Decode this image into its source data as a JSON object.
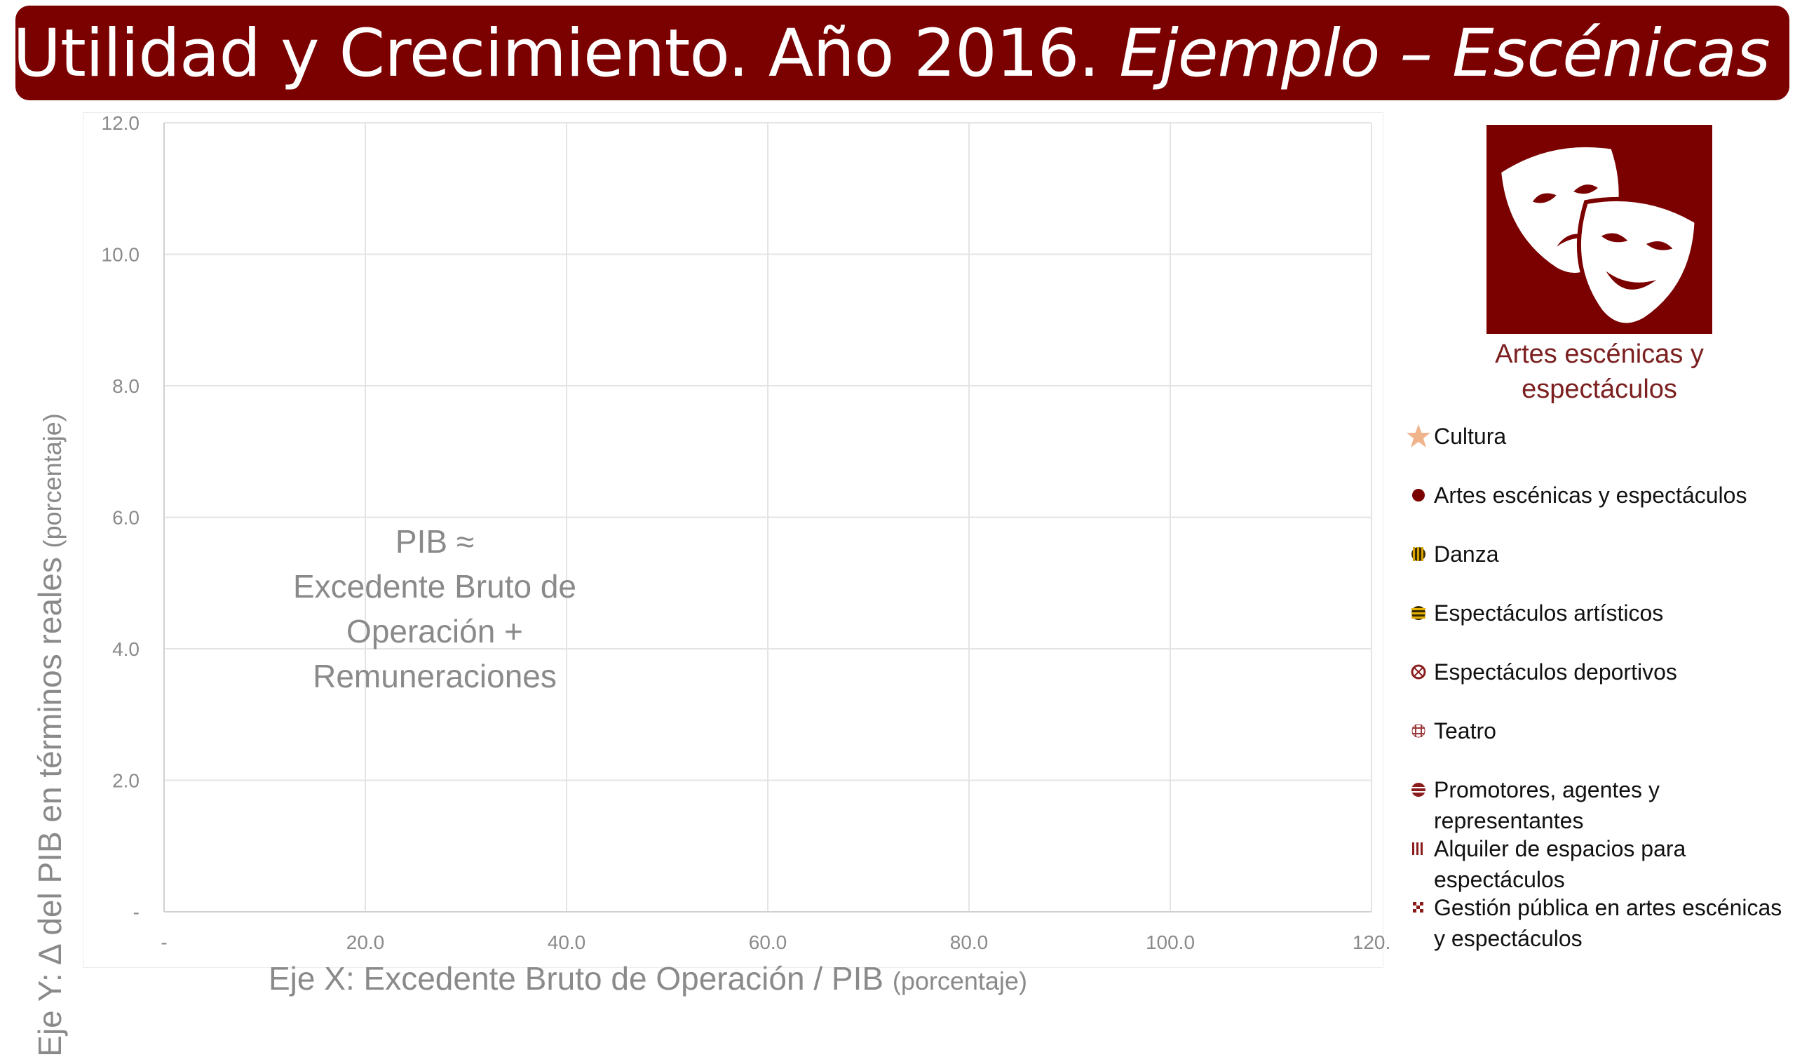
{
  "header": {
    "title_main": "Utilidad y Crecimiento. Año 2016.",
    "title_italic": "Ejemplo – Escénicas"
  },
  "annotation": [
    "PIB ≈",
    "Excedente Bruto de",
    "Operación +",
    "Remuneraciones"
  ],
  "sector": {
    "icon": "theater-masks-icon",
    "title_line1": "Artes escénicas y",
    "title_line2": "espectáculos"
  },
  "axes": {
    "y_title": "Eje Y: ∆ del PIB en términos reales",
    "y_unit": "(porcentaje)",
    "x_title": "Eje X: Excedente Bruto de Operación / PIB",
    "x_unit": "(porcentaje)"
  },
  "colors": {
    "brand": "#7b0000",
    "cultura": "#f0b48c",
    "artes": "#7b0000",
    "danza": "#d9a300",
    "espectaculos_artisticos": "#e6b000",
    "deportivos": "#8b1c1c",
    "teatro": "#9b3a3a",
    "promotores": "#8b1c1c",
    "alquiler": "#8b1c1c",
    "gestion": "#8b1c1c"
  },
  "legend": [
    {
      "label": "Cultura",
      "marker": "star"
    },
    {
      "label": "Artes escénicas y espectáculos",
      "marker": "dot"
    },
    {
      "label": "Danza",
      "marker": "vstripe"
    },
    {
      "label": "Espectáculos artísticos",
      "marker": "hstripe"
    },
    {
      "label": "Espectáculos deportivos",
      "marker": "ring"
    },
    {
      "label": "Teatro",
      "marker": "grid"
    },
    {
      "label": "Promotores, agentes y representantes",
      "marker": "hstripe2"
    },
    {
      "label": "Alquiler de espacios para espectáculos",
      "marker": "vstripe2"
    },
    {
      "label": "Gestión pública en artes escénicas y espectáculos",
      "marker": "check"
    }
  ],
  "chart_data": {
    "type": "scatter",
    "title": "Utilidad y Crecimiento. Año 2016. Ejemplo – Escénicas",
    "xlabel": "Eje X: Excedente Bruto de Operación / PIB (porcentaje)",
    "ylabel": "Eje Y: ∆ del PIB en términos reales (porcentaje)",
    "xlim": [
      0,
      120
    ],
    "ylim": [
      0,
      12
    ],
    "x_ticks": [
      0,
      20,
      40,
      60,
      80,
      100,
      120
    ],
    "x_tick_labels": [
      "-",
      "20.0",
      "40.0",
      "60.0",
      "80.0",
      "100.0",
      "120."
    ],
    "y_ticks": [
      0,
      2,
      4,
      6,
      8,
      10,
      12
    ],
    "y_tick_labels": [
      "-",
      "2.0",
      "4.0",
      "6.0",
      "8.0",
      "10.0",
      "12.0"
    ],
    "grid": true,
    "legend_position": "right",
    "series": [
      {
        "name": "Cultura",
        "points": []
      },
      {
        "name": "Artes escénicas y espectáculos",
        "points": []
      },
      {
        "name": "Danza",
        "points": []
      },
      {
        "name": "Espectáculos artísticos",
        "points": []
      },
      {
        "name": "Espectáculos deportivos",
        "points": []
      },
      {
        "name": "Teatro",
        "points": []
      },
      {
        "name": "Promotores, agentes y representantes",
        "points": []
      },
      {
        "name": "Alquiler de espacios para espectáculos",
        "points": []
      },
      {
        "name": "Gestión pública en artes escénicas y espectáculos",
        "points": []
      }
    ]
  }
}
